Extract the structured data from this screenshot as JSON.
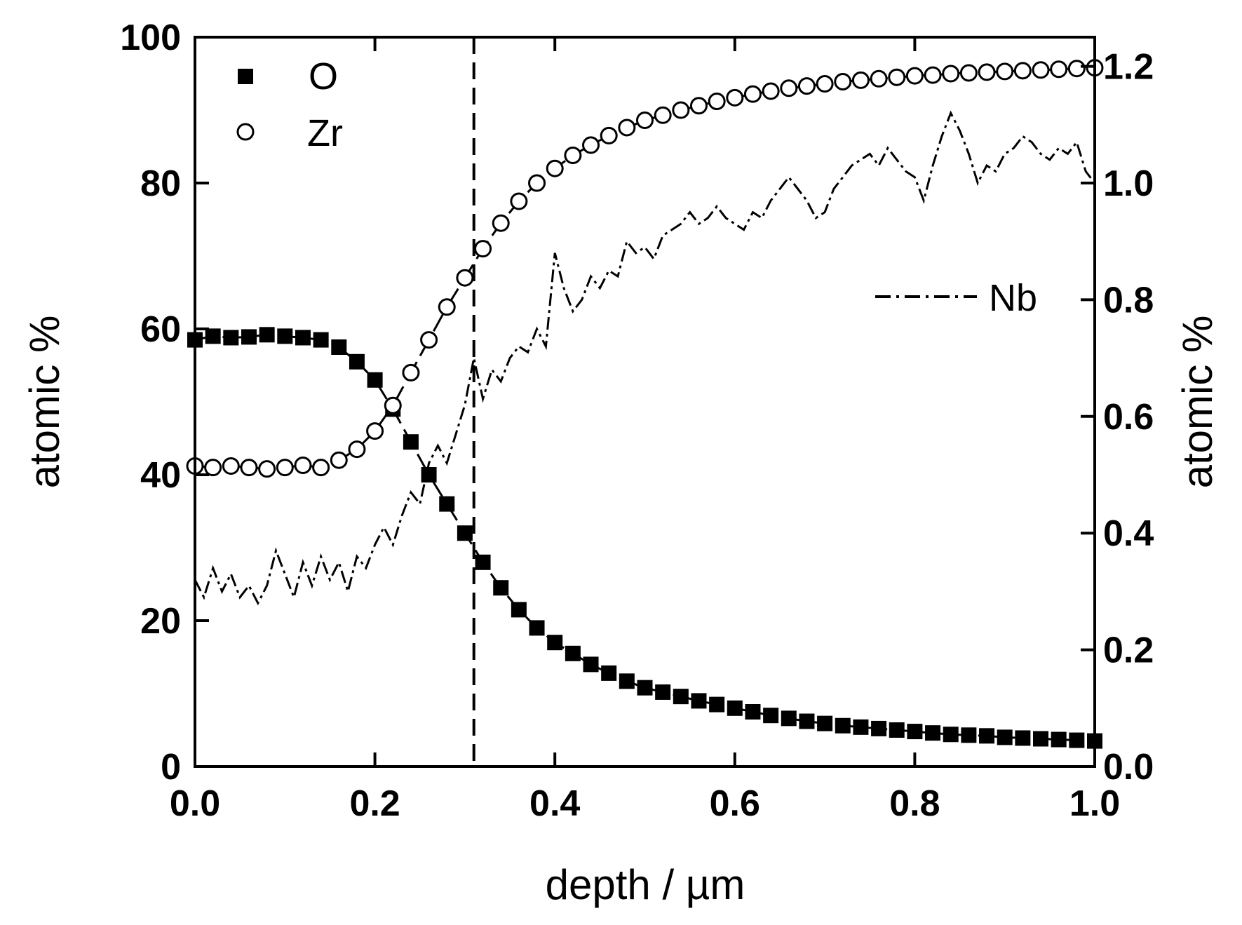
{
  "chart_data": {
    "type": "scatter",
    "title": "",
    "xlabel": "depth / µm",
    "ylabel": "atomic %",
    "y2label": "atomic %",
    "xlim": [
      0.0,
      1.0
    ],
    "ylim": [
      0,
      100
    ],
    "y2lim": [
      0.0,
      1.25
    ],
    "xticks": [
      "0.0",
      "0.2",
      "0.4",
      "0.6",
      "0.8",
      "1.0"
    ],
    "yticks": [
      "0",
      "20",
      "40",
      "60",
      "80",
      "100"
    ],
    "y2ticks": [
      "0.0",
      "0.2",
      "0.4",
      "0.6",
      "0.8",
      "1.0",
      "1.2"
    ],
    "vline_x": 0.31,
    "legend": [
      {
        "label": "O",
        "marker": "filled-square"
      },
      {
        "label": "Zr",
        "marker": "open-circle"
      }
    ],
    "nb_label": "Nb",
    "series": [
      {
        "name": "O",
        "axis": "left",
        "x": [
          0.0,
          0.02,
          0.04,
          0.06,
          0.08,
          0.1,
          0.12,
          0.14,
          0.16,
          0.18,
          0.2,
          0.22,
          0.24,
          0.26,
          0.28,
          0.3,
          0.32,
          0.34,
          0.36,
          0.38,
          0.4,
          0.42,
          0.44,
          0.46,
          0.48,
          0.5,
          0.52,
          0.54,
          0.56,
          0.58,
          0.6,
          0.62,
          0.64,
          0.66,
          0.68,
          0.7,
          0.72,
          0.74,
          0.76,
          0.78,
          0.8,
          0.82,
          0.84,
          0.86,
          0.88,
          0.9,
          0.92,
          0.94,
          0.96,
          0.98,
          1.0
        ],
        "values": [
          58.5,
          59.0,
          58.8,
          58.9,
          59.2,
          59.0,
          58.8,
          58.5,
          57.5,
          55.5,
          53.0,
          49.0,
          44.5,
          40.0,
          36.0,
          32.0,
          28.0,
          24.5,
          21.5,
          19.0,
          17.0,
          15.5,
          14.0,
          12.8,
          11.7,
          10.8,
          10.2,
          9.6,
          9.0,
          8.5,
          8.0,
          7.5,
          7.0,
          6.6,
          6.2,
          5.9,
          5.6,
          5.4,
          5.2,
          5.0,
          4.8,
          4.6,
          4.4,
          4.3,
          4.2,
          4.0,
          3.9,
          3.8,
          3.7,
          3.6,
          3.5
        ]
      },
      {
        "name": "Zr",
        "axis": "left",
        "x": [
          0.0,
          0.02,
          0.04,
          0.06,
          0.08,
          0.1,
          0.12,
          0.14,
          0.16,
          0.18,
          0.2,
          0.22,
          0.24,
          0.26,
          0.28,
          0.3,
          0.32,
          0.34,
          0.36,
          0.38,
          0.4,
          0.42,
          0.44,
          0.46,
          0.48,
          0.5,
          0.52,
          0.54,
          0.56,
          0.58,
          0.6,
          0.62,
          0.64,
          0.66,
          0.68,
          0.7,
          0.72,
          0.74,
          0.76,
          0.78,
          0.8,
          0.82,
          0.84,
          0.86,
          0.88,
          0.9,
          0.92,
          0.94,
          0.96,
          0.98,
          1.0
        ],
        "values": [
          41.2,
          41.0,
          41.2,
          41.0,
          40.8,
          41.0,
          41.3,
          41.0,
          42.0,
          43.5,
          46.0,
          49.5,
          54.0,
          58.5,
          63.0,
          67.0,
          71.0,
          74.5,
          77.5,
          80.0,
          82.0,
          83.8,
          85.2,
          86.5,
          87.6,
          88.6,
          89.3,
          90.0,
          90.6,
          91.2,
          91.7,
          92.2,
          92.6,
          93.0,
          93.3,
          93.6,
          93.9,
          94.1,
          94.3,
          94.5,
          94.7,
          94.8,
          95.0,
          95.1,
          95.2,
          95.3,
          95.4,
          95.5,
          95.6,
          95.7,
          95.8
        ]
      },
      {
        "name": "Nb",
        "axis": "right",
        "x": [
          0.0,
          0.01,
          0.02,
          0.03,
          0.04,
          0.05,
          0.06,
          0.07,
          0.08,
          0.09,
          0.1,
          0.11,
          0.12,
          0.13,
          0.14,
          0.15,
          0.16,
          0.17,
          0.18,
          0.19,
          0.2,
          0.21,
          0.22,
          0.23,
          0.24,
          0.25,
          0.26,
          0.27,
          0.28,
          0.29,
          0.3,
          0.31,
          0.32,
          0.33,
          0.34,
          0.35,
          0.36,
          0.37,
          0.38,
          0.39,
          0.4,
          0.41,
          0.42,
          0.43,
          0.44,
          0.45,
          0.46,
          0.47,
          0.48,
          0.49,
          0.5,
          0.51,
          0.52,
          0.53,
          0.54,
          0.55,
          0.56,
          0.57,
          0.58,
          0.59,
          0.6,
          0.61,
          0.62,
          0.63,
          0.64,
          0.65,
          0.66,
          0.67,
          0.68,
          0.69,
          0.7,
          0.71,
          0.72,
          0.73,
          0.74,
          0.75,
          0.76,
          0.77,
          0.78,
          0.79,
          0.8,
          0.81,
          0.82,
          0.83,
          0.84,
          0.85,
          0.86,
          0.87,
          0.88,
          0.89,
          0.9,
          0.91,
          0.92,
          0.93,
          0.94,
          0.95,
          0.96,
          0.97,
          0.98,
          0.99,
          1.0
        ],
        "values": [
          0.32,
          0.29,
          0.34,
          0.3,
          0.33,
          0.29,
          0.31,
          0.28,
          0.31,
          0.37,
          0.33,
          0.29,
          0.35,
          0.31,
          0.36,
          0.32,
          0.35,
          0.3,
          0.36,
          0.34,
          0.38,
          0.41,
          0.38,
          0.43,
          0.47,
          0.45,
          0.52,
          0.55,
          0.52,
          0.57,
          0.62,
          0.7,
          0.63,
          0.68,
          0.66,
          0.7,
          0.72,
          0.71,
          0.75,
          0.72,
          0.88,
          0.82,
          0.78,
          0.8,
          0.84,
          0.82,
          0.85,
          0.84,
          0.9,
          0.88,
          0.89,
          0.87,
          0.91,
          0.92,
          0.93,
          0.95,
          0.93,
          0.94,
          0.96,
          0.94,
          0.93,
          0.92,
          0.95,
          0.94,
          0.97,
          0.99,
          1.01,
          0.99,
          0.97,
          0.94,
          0.95,
          0.99,
          1.01,
          1.03,
          1.04,
          1.05,
          1.03,
          1.06,
          1.04,
          1.02,
          1.01,
          0.97,
          1.03,
          1.08,
          1.12,
          1.09,
          1.05,
          1.0,
          1.03,
          1.02,
          1.05,
          1.06,
          1.08,
          1.07,
          1.05,
          1.04,
          1.06,
          1.05,
          1.07,
          1.02,
          1.0
        ]
      }
    ]
  }
}
